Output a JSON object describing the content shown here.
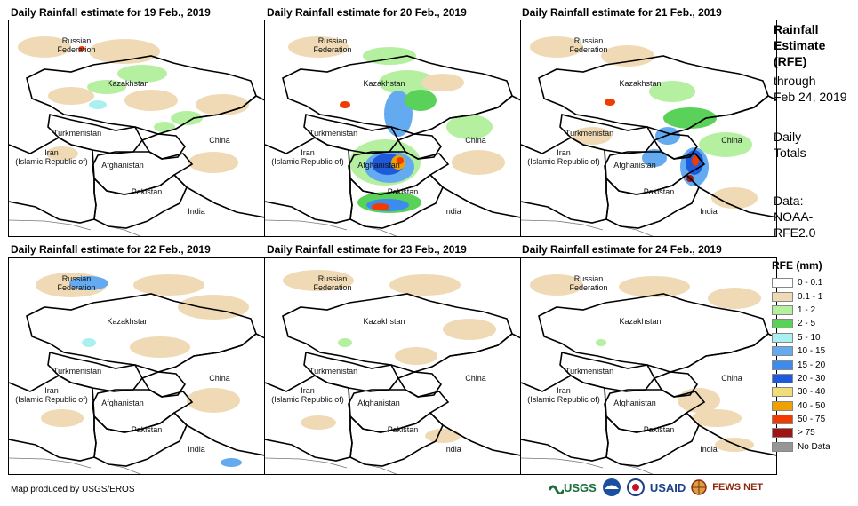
{
  "panels": [
    {
      "title": "Daily Rainfall estimate for 19 Feb., 2019"
    },
    {
      "title": "Daily Rainfall estimate for 20 Feb., 2019"
    },
    {
      "title": "Daily Rainfall estimate for 21 Feb., 2019"
    },
    {
      "title": "Daily Rainfall estimate for 22 Feb., 2019"
    },
    {
      "title": "Daily Rainfall estimate for 23 Feb., 2019"
    },
    {
      "title": "Daily Rainfall estimate for 24 Feb., 2019"
    }
  ],
  "labels": {
    "russia": "Russian Federation",
    "kazakhstan": "Kazakhstan",
    "turkmenistan": "Turkmenistan",
    "iran": "Iran (Islamic Republic of)",
    "afghanistan": "Afghanistan",
    "pakistan": "Pakistan",
    "china": "China",
    "india": "India"
  },
  "side": {
    "title_line1": "Rainfall",
    "title_line2": "Estimate",
    "title_line3": "(RFE)",
    "through": "through",
    "date": "Feb 24, 2019",
    "daily": "Daily",
    "totals": "Totals",
    "data_label": "Data:",
    "data_src1": "NOAA-",
    "data_src2": "RFE2.0"
  },
  "legend": {
    "title": "RFE (mm)",
    "items": [
      {
        "label": "0 - 0.1",
        "color": "#ffffff"
      },
      {
        "label": "0.1 - 1",
        "color": "#f0d9b5"
      },
      {
        "label": "1 - 2",
        "color": "#b4f0a0"
      },
      {
        "label": "2 - 5",
        "color": "#5ad25a"
      },
      {
        "label": "5 - 10",
        "color": "#aaf0f0"
      },
      {
        "label": "10 - 15",
        "color": "#64aaf0"
      },
      {
        "label": "15 - 20",
        "color": "#3c8cf0"
      },
      {
        "label": "20 - 30",
        "color": "#1e5adc"
      },
      {
        "label": "30 - 40",
        "color": "#f0dc78"
      },
      {
        "label": "40 - 50",
        "color": "#f0a000"
      },
      {
        "label": "50 - 75",
        "color": "#f03c00"
      },
      {
        "label": "> 75",
        "color": "#a01414"
      },
      {
        "label": "No Data",
        "color": "#969696"
      }
    ]
  },
  "footer": {
    "credit": "Map produced by USGS/EROS",
    "usgs": "USGS",
    "usaid": "USAID",
    "fewsnet": "FEWS NET"
  }
}
